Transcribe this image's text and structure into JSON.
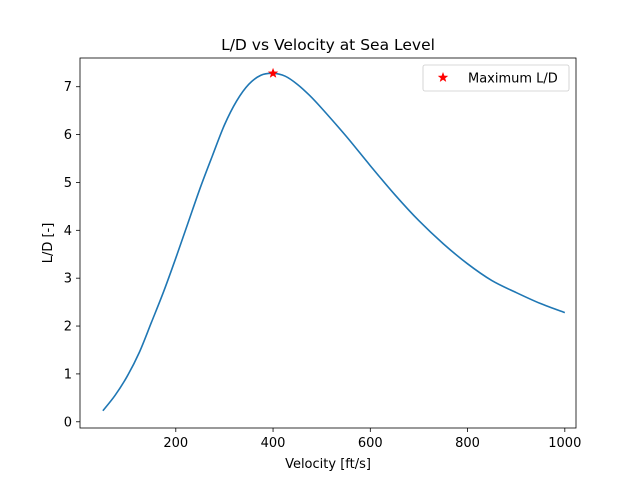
{
  "chart_data": {
    "type": "line",
    "title": "L/D vs Velocity at Sea Level",
    "xlabel": "Velocity [ft/s]",
    "ylabel": "L/D [-]",
    "xlim": [
      3,
      1023
    ],
    "ylim": [
      -0.13,
      7.6
    ],
    "xticks": [
      200,
      400,
      600,
      800,
      1000
    ],
    "yticks": [
      0,
      1,
      2,
      3,
      4,
      5,
      6,
      7
    ],
    "grid": false,
    "legend_position": "top-right",
    "series": [
      {
        "color": "#1f77b4",
        "x": [
          50,
          75,
          100,
          125,
          150,
          175,
          200,
          225,
          250,
          275,
          300,
          325,
          350,
          375,
          400,
          425,
          450,
          475,
          500,
          550,
          600,
          650,
          700,
          750,
          800,
          850,
          900,
          950,
          1000
        ],
        "y": [
          0.23,
          0.55,
          0.95,
          1.45,
          2.08,
          2.72,
          3.42,
          4.15,
          4.88,
          5.55,
          6.2,
          6.7,
          7.05,
          7.24,
          7.28,
          7.22,
          7.05,
          6.82,
          6.55,
          5.97,
          5.35,
          4.75,
          4.2,
          3.72,
          3.3,
          2.95,
          2.7,
          2.47,
          2.28
        ]
      }
    ],
    "markers": [
      {
        "name": "Maximum L/D",
        "x": 400,
        "y": 7.28,
        "color": "#ff0000",
        "symbol": "star"
      }
    ]
  }
}
